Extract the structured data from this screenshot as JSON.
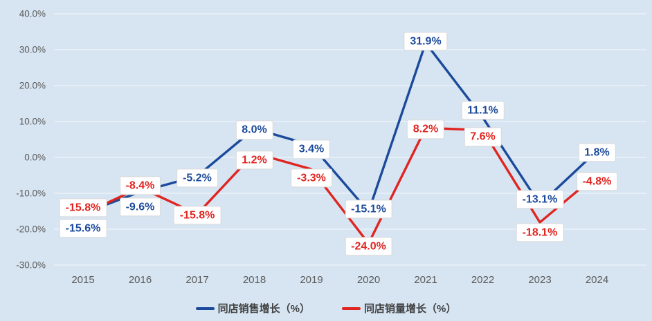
{
  "colors": {
    "background": "#d7e5f2",
    "gridline": "rgba(255,255,255,0.5)",
    "axis_text": "#5a5a5a",
    "legend_text": "#404040",
    "label_box_bg": "#ffffff",
    "label_box_border": "#d8d8d8"
  },
  "chart_data": {
    "type": "line",
    "categories": [
      "2015",
      "2016",
      "2017",
      "2018",
      "2019",
      "2020",
      "2021",
      "2022",
      "2023",
      "2024"
    ],
    "series": [
      {
        "id": "same-store-sales-growth",
        "name": "同店销售增长（%）",
        "color": "#1b4a9b",
        "values": [
          -15.6,
          -9.6,
          -5.2,
          8.0,
          3.4,
          -15.1,
          31.9,
          11.1,
          -13.1,
          1.8
        ],
        "point_labels": [
          "-15.6%",
          "-9.6%",
          "-5.2%",
          "8.0%",
          "3.4%",
          "-15.1%",
          "31.9%",
          "11.1%",
          "-13.1%",
          "1.8%"
        ],
        "label_dy": [
          22,
          22,
          3,
          2,
          6,
          -4,
          -2,
          -10,
          -7,
          2
        ]
      },
      {
        "id": "same-store-volume-growth",
        "name": "同店销量增长（%）",
        "color": "#e02420",
        "values": [
          -15.8,
          -8.4,
          -15.8,
          1.2,
          -3.3,
          -24.0,
          8.2,
          7.6,
          -18.1,
          -4.8
        ],
        "point_labels": [
          "-15.8%",
          "-8.4%",
          "-15.8%",
          "1.2%",
          "-3.3%",
          "-24.0%",
          "8.2%",
          "7.6%",
          "-18.1%",
          "-4.8%"
        ],
        "label_dy": [
          -9,
          -3,
          2,
          10,
          13,
          4,
          2,
          10,
          15,
          10
        ]
      }
    ],
    "ylim": [
      -30,
      40
    ],
    "ytick_values": [
      40,
      30,
      20,
      10,
      0,
      -10,
      -20,
      -30
    ],
    "ytick_labels": [
      "40.0%",
      "30.0%",
      "20.0%",
      "10.0%",
      "0.0%",
      "-10.0%",
      "-20.0%",
      "-30.0%"
    ],
    "grid": true,
    "legend_position": "bottom",
    "title": "",
    "xlabel": "",
    "ylabel": ""
  }
}
